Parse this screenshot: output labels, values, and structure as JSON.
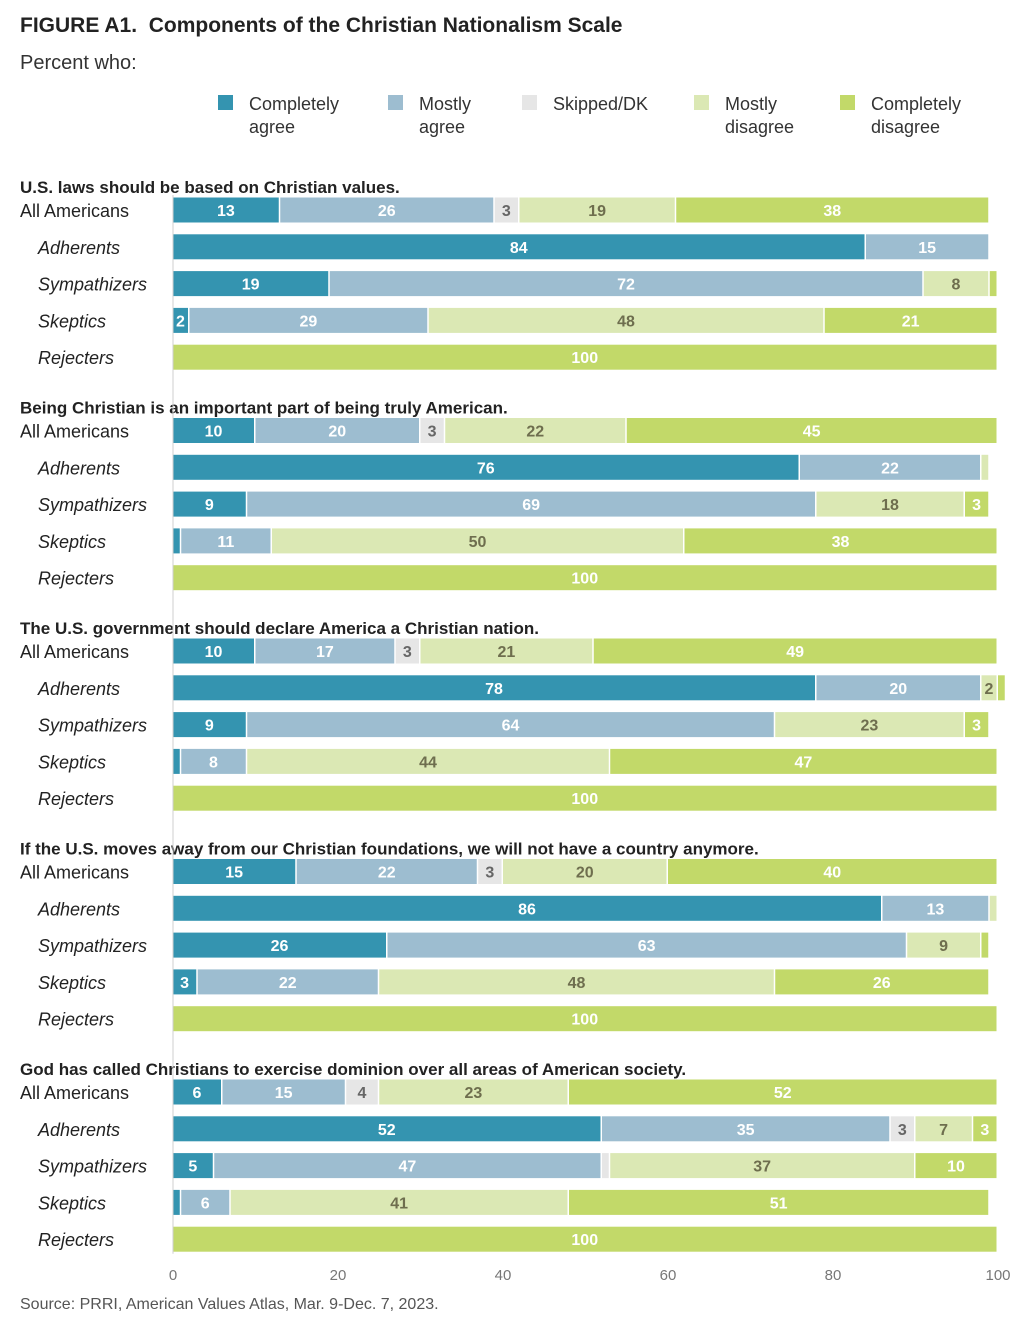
{
  "title": "FIGURE A1.  Components of the Christian Nationalism Scale",
  "subtitle": "Percent who:",
  "source": "Source: PRRI, American Values Atlas, Mar. 9-Dec. 7, 2023.",
  "chart_data": {
    "type": "bar",
    "orientation": "horizontal",
    "stacked": true,
    "xlim": [
      0,
      100
    ],
    "xticks": [
      "0",
      "20",
      "40",
      "60",
      "80",
      "100"
    ],
    "grid": false,
    "legend_position": "top",
    "legend": [
      {
        "key": "completely_agree",
        "lines": [
          "Completely",
          "agree"
        ],
        "color": "#3494b0"
      },
      {
        "key": "mostly_agree",
        "lines": [
          "Mostly",
          "agree"
        ],
        "color": "#9dbdd0"
      },
      {
        "key": "skipped_dk",
        "lines": [
          "Skipped/DK"
        ],
        "color": "#e6e6e6"
      },
      {
        "key": "mostly_disagree",
        "lines": [
          "Mostly",
          "disagree"
        ],
        "color": "#dbe8b4"
      },
      {
        "key": "completely_disagree",
        "lines": [
          "Completely",
          "disagree"
        ],
        "color": "#c2d969"
      }
    ],
    "text_colors": [
      "#ffffff",
      "#ffffff",
      "#666666",
      "#6e6e4e",
      "#ffffff"
    ],
    "groups": [
      {
        "question": "U.S. laws should be based on Christian values.",
        "rows": [
          {
            "label": "All Americans",
            "values": [
              13,
              26,
              3,
              19,
              38
            ]
          },
          {
            "label": "Adherents",
            "values": [
              84,
              15,
              0,
              0,
              0
            ]
          },
          {
            "label": "Sympathizers",
            "values": [
              19,
              72,
              0,
              8,
              1
            ]
          },
          {
            "label": "Skeptics",
            "values": [
              2,
              29,
              0,
              48,
              21
            ]
          },
          {
            "label": "Rejecters",
            "values": [
              0,
              0,
              0,
              0,
              100
            ]
          }
        ]
      },
      {
        "question": "Being Christian is an important part of being truly American.",
        "rows": [
          {
            "label": "All Americans",
            "values": [
              10,
              20,
              3,
              22,
              45
            ]
          },
          {
            "label": "Adherents",
            "values": [
              76,
              22,
              0,
              1,
              0
            ]
          },
          {
            "label": "Sympathizers",
            "values": [
              9,
              69,
              0,
              18,
              3
            ]
          },
          {
            "label": "Skeptics",
            "values": [
              1,
              11,
              0,
              50,
              38
            ]
          },
          {
            "label": "Rejecters",
            "values": [
              0,
              0,
              0,
              0,
              100
            ]
          }
        ]
      },
      {
        "question": "The U.S. government should declare America a Christian nation.",
        "rows": [
          {
            "label": "All Americans",
            "values": [
              10,
              17,
              3,
              21,
              49
            ]
          },
          {
            "label": "Adherents",
            "values": [
              78,
              20,
              0,
              2,
              1
            ]
          },
          {
            "label": "Sympathizers",
            "values": [
              9,
              64,
              0,
              23,
              3
            ]
          },
          {
            "label": "Skeptics",
            "values": [
              1,
              8,
              0,
              44,
              47
            ]
          },
          {
            "label": "Rejecters",
            "values": [
              0,
              0,
              0,
              0,
              100
            ]
          }
        ]
      },
      {
        "question": "If the U.S. moves away from our Christian foundations, we will not have a country anymore.",
        "rows": [
          {
            "label": "All Americans",
            "values": [
              15,
              22,
              3,
              20,
              40
            ]
          },
          {
            "label": "Adherents",
            "values": [
              86,
              13,
              0,
              1,
              0
            ]
          },
          {
            "label": "Sympathizers",
            "values": [
              26,
              63,
              0,
              9,
              1
            ]
          },
          {
            "label": "Skeptics",
            "values": [
              3,
              22,
              0,
              48,
              26
            ]
          },
          {
            "label": "Rejecters",
            "values": [
              0,
              0,
              0,
              0,
              100
            ]
          }
        ]
      },
      {
        "question": "God has called Christians to exercise dominion over all areas of American society.",
        "rows": [
          {
            "label": "All Americans",
            "values": [
              6,
              15,
              4,
              23,
              52
            ]
          },
          {
            "label": "Adherents",
            "values": [
              52,
              35,
              3,
              7,
              3
            ]
          },
          {
            "label": "Sympathizers",
            "values": [
              5,
              47,
              1,
              37,
              10
            ]
          },
          {
            "label": "Skeptics",
            "values": [
              1,
              6,
              0,
              41,
              51
            ]
          },
          {
            "label": "Rejecters",
            "values": [
              0,
              0,
              0,
              0,
              100
            ]
          }
        ]
      }
    ]
  }
}
